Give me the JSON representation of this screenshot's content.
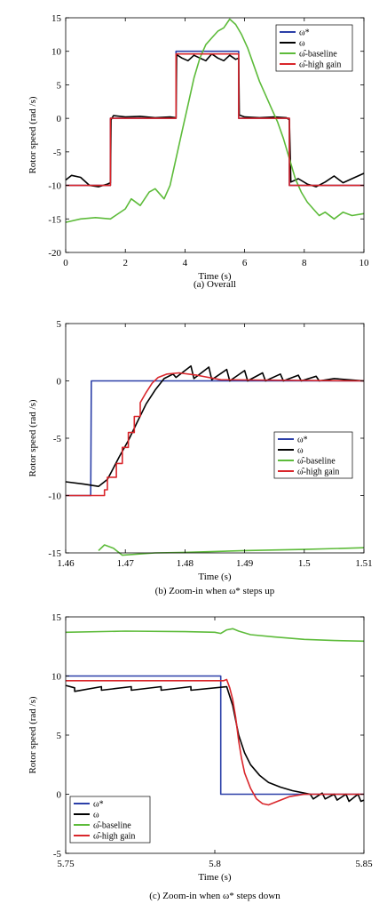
{
  "chart_data": [
    {
      "type": "line",
      "caption": "(a) Overall",
      "xlabel": "Time (s)",
      "ylabel": "Rotor speed (rad /s)",
      "xlim": [
        0,
        10
      ],
      "ylim": [
        -20,
        15
      ],
      "xticks": [
        "0",
        "2",
        "4",
        "6",
        "8",
        "10"
      ],
      "yticks": [
        "15",
        "10",
        "5",
        "0",
        "-5",
        "-10",
        "-15",
        "-20"
      ],
      "legend_position": "top-right",
      "series": [
        {
          "name": "ω*",
          "color": "#2b3fa8",
          "x": [
            0,
            1.5,
            1.5,
            3.7,
            3.7,
            5.8,
            5.8,
            7.5,
            7.5,
            10
          ],
          "y": [
            -10,
            -10,
            0,
            0,
            10,
            10,
            0,
            0,
            -10,
            -10
          ]
        },
        {
          "name": "ω",
          "color": "#000000",
          "x": [
            0,
            0.2,
            0.5,
            0.8,
            1.1,
            1.4,
            1.5,
            1.52,
            1.6,
            2.0,
            2.5,
            3.0,
            3.5,
            3.7,
            3.72,
            3.9,
            4.1,
            4.3,
            4.5,
            4.7,
            4.9,
            5.1,
            5.3,
            5.5,
            5.7,
            5.8,
            5.82,
            6.0,
            6.5,
            7.0,
            7.4,
            7.5,
            7.55,
            7.8,
            8.1,
            8.4,
            8.7,
            9.0,
            9.3,
            9.6,
            10
          ],
          "y": [
            -9.2,
            -8.5,
            -8.8,
            -10,
            -10.2,
            -9.8,
            -9.6,
            -0.2,
            0.4,
            0.2,
            0.3,
            0.1,
            0.2,
            0.1,
            9.5,
            9.0,
            8.6,
            9.4,
            9.0,
            8.6,
            9.6,
            9.0,
            8.6,
            9.4,
            8.8,
            9.0,
            0.5,
            0.2,
            0.1,
            0.2,
            0.1,
            -0.2,
            -9.5,
            -9.0,
            -9.8,
            -10.2,
            -9.5,
            -8.6,
            -9.6,
            -9.0,
            -8.2
          ]
        },
        {
          "name": "ω̂-baseline",
          "color": "#5dbb3a",
          "x": [
            0,
            0.5,
            1.0,
            1.5,
            2.0,
            2.2,
            2.5,
            2.8,
            3.0,
            3.3,
            3.5,
            3.7,
            3.9,
            4.1,
            4.3,
            4.5,
            4.7,
            4.9,
            5.1,
            5.3,
            5.5,
            5.7,
            5.9,
            6.1,
            6.3,
            6.5,
            6.7,
            6.9,
            7.1,
            7.3,
            7.5,
            7.7,
            7.9,
            8.1,
            8.3,
            8.5,
            8.7,
            9.0,
            9.3,
            9.6,
            10
          ],
          "y": [
            -15.5,
            -15,
            -14.8,
            -15,
            -13.5,
            -12,
            -13,
            -11,
            -10.5,
            -12,
            -10,
            -6,
            -2,
            2,
            6,
            9,
            11,
            12,
            13,
            13.5,
            14.8,
            14,
            12.5,
            10.5,
            8,
            5.5,
            3.5,
            1.5,
            -0.5,
            -3,
            -6,
            -9,
            -11,
            -12.5,
            -13.5,
            -14.5,
            -14,
            -15,
            -14,
            -14.5,
            -14.2
          ]
        },
        {
          "name": "ω̂-high gain",
          "color": "#d9262b",
          "x": [
            0,
            1.5,
            1.5,
            3.7,
            3.7,
            5.8,
            5.8,
            7.5,
            7.5,
            10
          ],
          "y": [
            -10,
            -10,
            0,
            0,
            9.6,
            9.6,
            0,
            0,
            -10,
            -10
          ]
        }
      ]
    },
    {
      "type": "line",
      "caption": "(b) Zoom-in when ω* steps up",
      "xlabel": "Time (s)",
      "ylabel": "Rotor speed (rad /s)",
      "xlim": [
        1.46,
        1.51
      ],
      "ylim": [
        -15,
        5
      ],
      "xticks": [
        "1.46",
        "1.47",
        "1.48",
        "1.49",
        "1.5",
        "1.51"
      ],
      "yticks": [
        "5",
        "0",
        "-5",
        "-10",
        "-15"
      ],
      "legend_position": "center-right",
      "series": [
        {
          "name": "ω*",
          "color": "#2b3fa8",
          "x": [
            1.46,
            1.4642,
            1.4643,
            1.51
          ],
          "y": [
            -10,
            -10,
            0,
            0
          ]
        },
        {
          "name": "ω",
          "color": "#000000",
          "x": [
            1.46,
            1.463,
            1.4655,
            1.467,
            1.468,
            1.469,
            1.4705,
            1.472,
            1.4735,
            1.475,
            1.4765,
            1.478,
            1.4785,
            1.481,
            1.4815,
            1.484,
            1.4845,
            1.487,
            1.4875,
            1.49,
            1.4905,
            1.493,
            1.4935,
            1.496,
            1.4965,
            1.499,
            1.4995,
            1.502,
            1.5025,
            1.505,
            1.51
          ],
          "y": [
            -8.8,
            -9.0,
            -9.2,
            -8.6,
            -7.6,
            -6.6,
            -5.2,
            -3.6,
            -2.0,
            -0.8,
            0.2,
            0.6,
            0.3,
            1.3,
            0.2,
            1.2,
            0.1,
            1.0,
            0.0,
            0.9,
            0.0,
            0.7,
            0.0,
            0.6,
            0.0,
            0.5,
            0.0,
            0.4,
            0.0,
            0.2,
            0.0
          ]
        },
        {
          "name": "ω̂-baseline",
          "color": "#5dbb3a",
          "x": [
            1.4655,
            1.4665,
            1.468,
            1.4695,
            1.475,
            1.48,
            1.49,
            1.5,
            1.51
          ],
          "y": [
            -14.8,
            -14.3,
            -14.6,
            -15.2,
            -15.0,
            -14.95,
            -14.8,
            -14.7,
            -14.55
          ]
        },
        {
          "name": "ω̂-high gain",
          "color": "#d9262b",
          "x": [
            1.46,
            1.4665,
            1.4665,
            1.467,
            1.467,
            1.4685,
            1.4685,
            1.4695,
            1.4695,
            1.4705,
            1.4705,
            1.4715,
            1.4715,
            1.4725,
            1.4725,
            1.4735,
            1.4745,
            1.4755,
            1.477,
            1.479,
            1.482,
            1.486,
            1.51
          ],
          "y": [
            -10,
            -10,
            -9.5,
            -9.5,
            -8.4,
            -8.4,
            -7.2,
            -7.2,
            -5.8,
            -5.8,
            -4.5,
            -4.5,
            -3.1,
            -3.1,
            -1.9,
            -1.0,
            -0.2,
            0.3,
            0.6,
            0.7,
            0.5,
            0.1,
            0.0
          ]
        }
      ]
    },
    {
      "type": "line",
      "caption": "(c) Zoom-in when ω* steps down",
      "xlabel": "Time (s)",
      "ylabel": "Rotor speed (rad /s)",
      "xlim": [
        5.75,
        5.85
      ],
      "ylim": [
        -5,
        15
      ],
      "xticks": [
        "5.75",
        "5.8",
        "5.85"
      ],
      "yticks": [
        "15",
        "10",
        "5",
        "0",
        "-5"
      ],
      "legend_position": "bottom-left",
      "series": [
        {
          "name": "ω*",
          "color": "#2b3fa8",
          "x": [
            5.75,
            5.802,
            5.802,
            5.85
          ],
          "y": [
            10,
            10,
            0,
            0
          ]
        },
        {
          "name": "ω",
          "color": "#000000",
          "x": [
            5.75,
            5.753,
            5.753,
            5.762,
            5.762,
            5.772,
            5.772,
            5.782,
            5.782,
            5.792,
            5.792,
            5.804,
            5.806,
            5.808,
            5.81,
            5.812,
            5.815,
            5.818,
            5.822,
            5.826,
            5.83,
            5.832,
            5.833,
            5.836,
            5.837,
            5.84,
            5.841,
            5.844,
            5.845,
            5.848,
            5.849,
            5.85
          ],
          "y": [
            9.2,
            9.0,
            8.7,
            9.1,
            8.8,
            9.1,
            8.8,
            9.1,
            8.8,
            9.1,
            8.8,
            9.1,
            7.5,
            5.0,
            3.5,
            2.5,
            1.6,
            1.0,
            0.6,
            0.3,
            0.1,
            0.0,
            -0.4,
            0.1,
            -0.4,
            0.0,
            -0.5,
            0.0,
            -0.6,
            0.0,
            -0.6,
            -0.5
          ]
        },
        {
          "name": "ω̂-baseline",
          "color": "#5dbb3a",
          "x": [
            5.75,
            5.77,
            5.79,
            5.8,
            5.802,
            5.804,
            5.806,
            5.808,
            5.812,
            5.82,
            5.83,
            5.84,
            5.85
          ],
          "y": [
            13.7,
            13.8,
            13.75,
            13.7,
            13.6,
            13.9,
            14.0,
            13.8,
            13.5,
            13.3,
            13.1,
            13.0,
            12.95
          ]
        },
        {
          "name": "ω̂-high gain",
          "color": "#d9262b",
          "x": [
            5.75,
            5.803,
            5.804,
            5.805,
            5.806,
            5.807,
            5.808,
            5.809,
            5.81,
            5.812,
            5.814,
            5.816,
            5.818,
            5.821,
            5.825,
            5.83,
            5.85
          ],
          "y": [
            9.6,
            9.6,
            9.7,
            9.0,
            8.0,
            6.5,
            4.5,
            3.0,
            1.8,
            0.5,
            -0.4,
            -0.8,
            -0.9,
            -0.6,
            -0.2,
            0.0,
            0.0
          ]
        }
      ]
    }
  ]
}
